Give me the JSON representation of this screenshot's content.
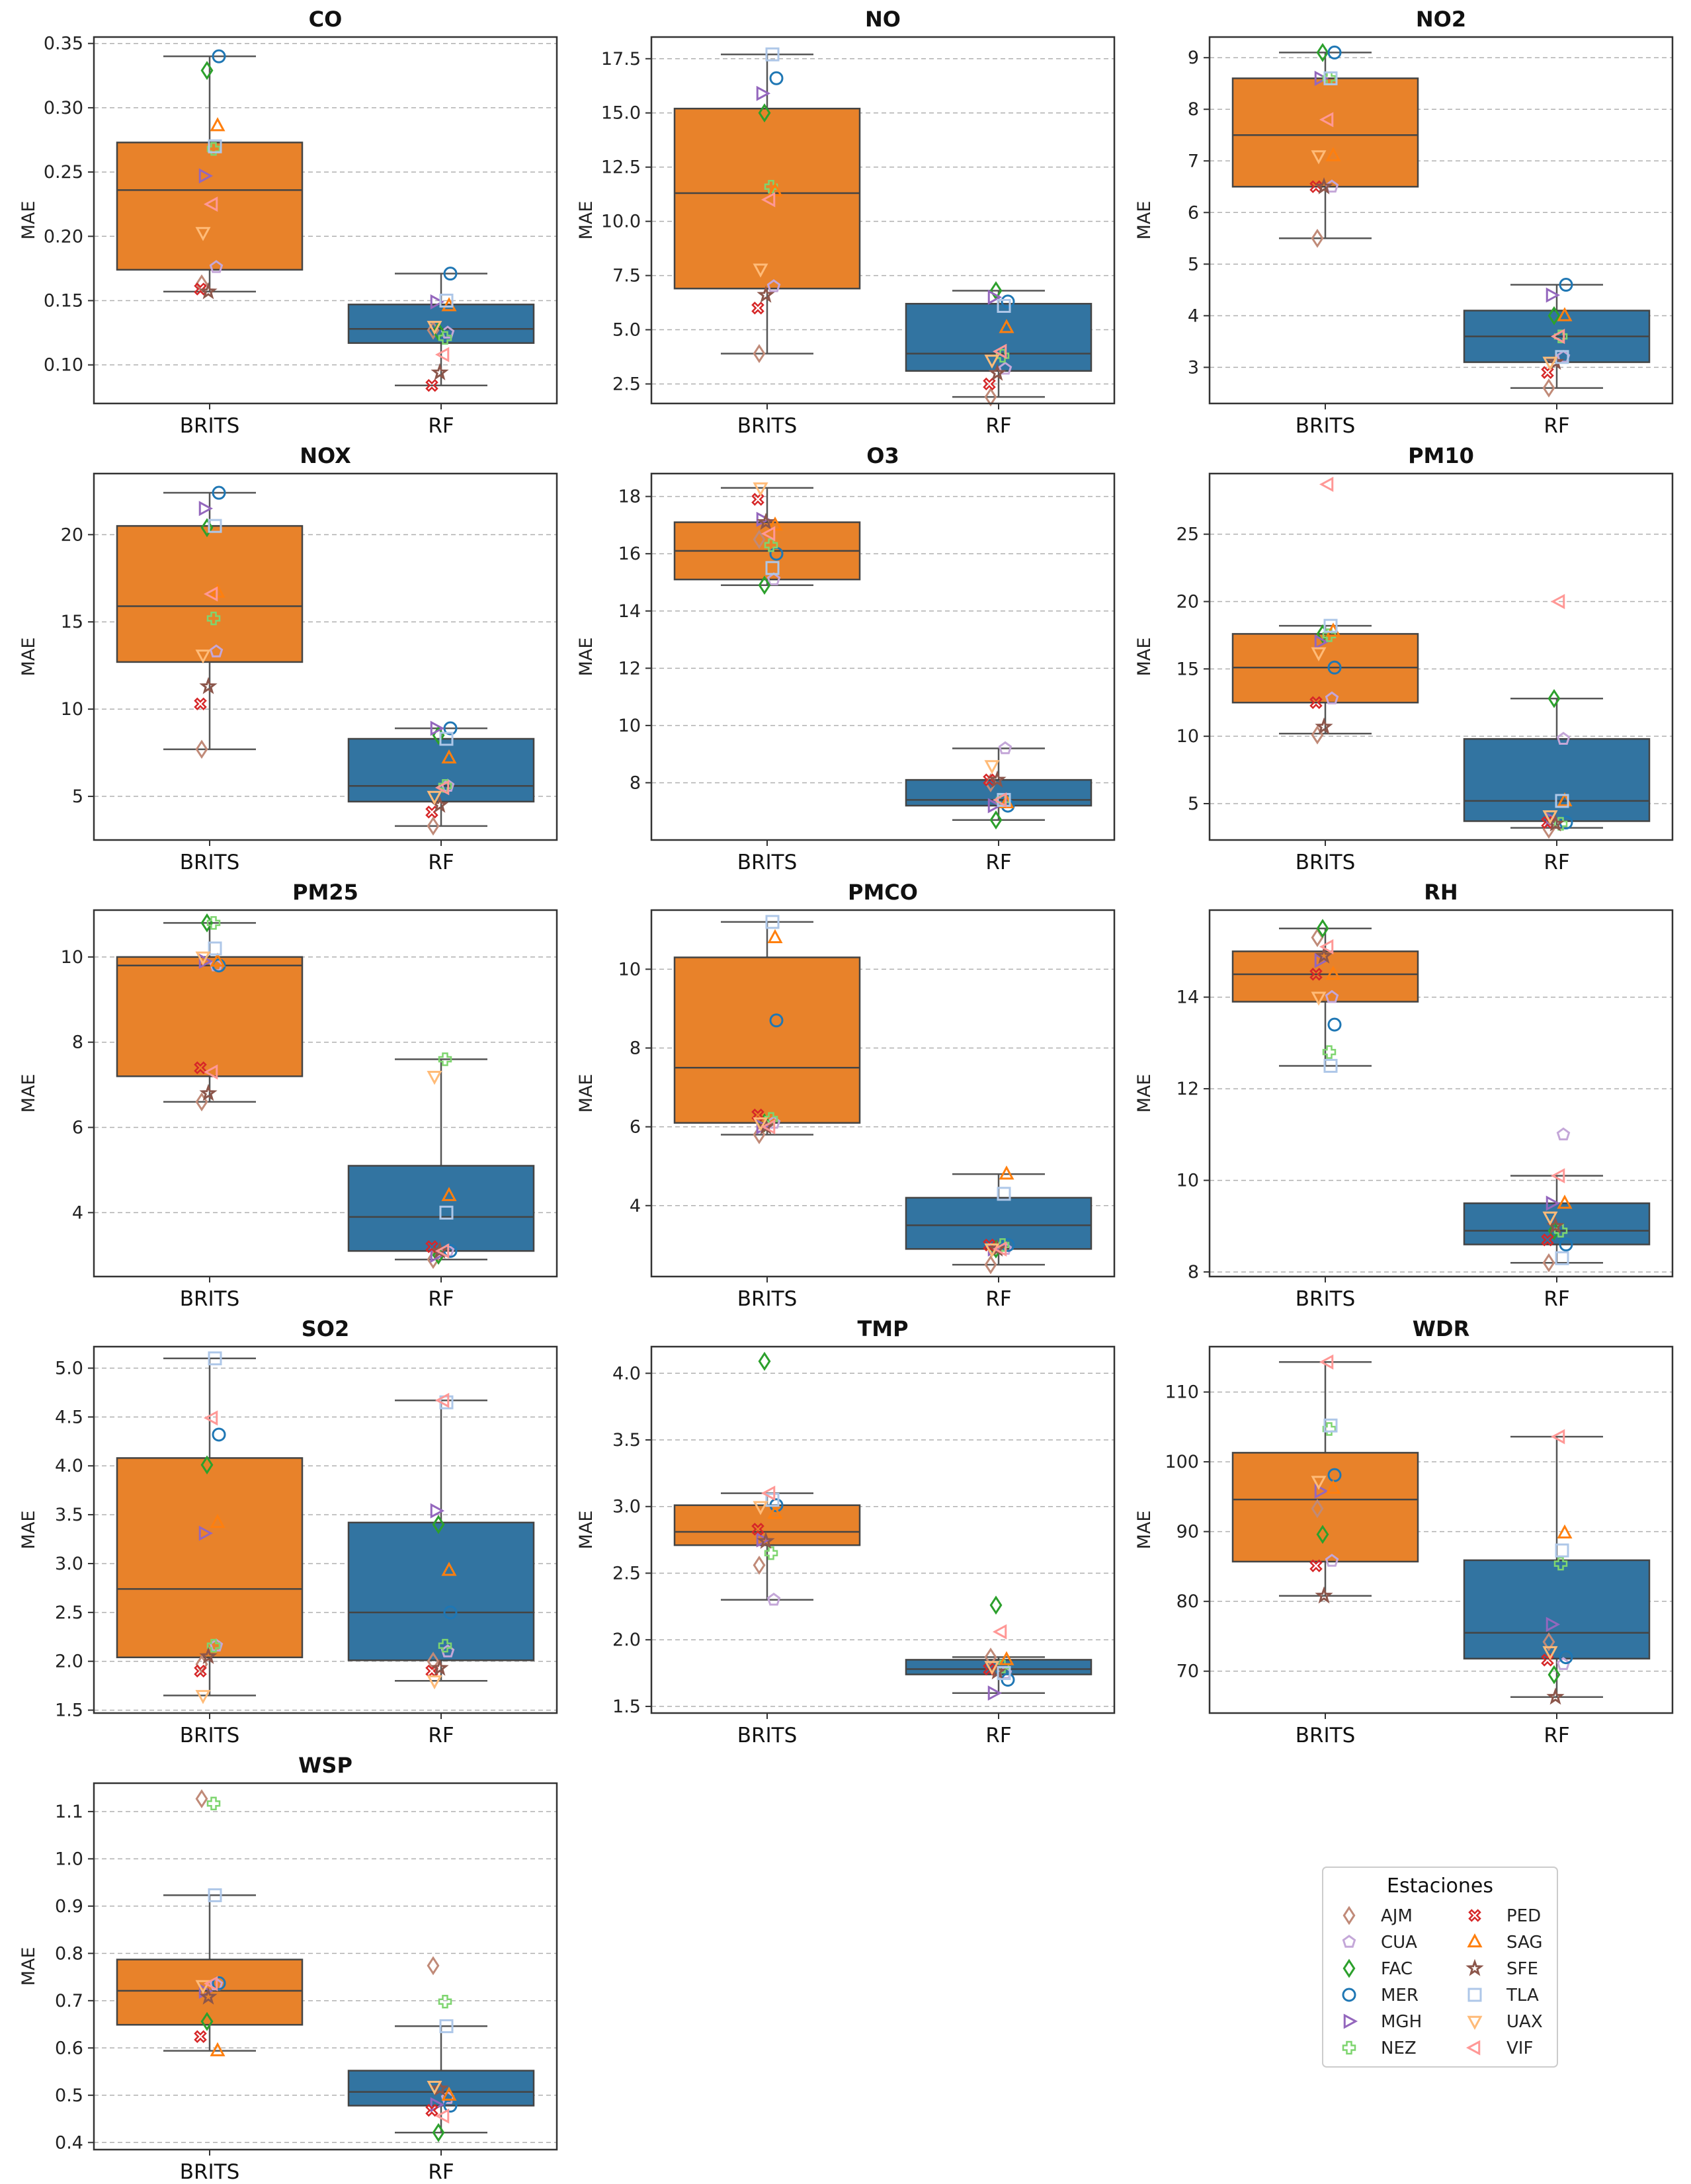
{
  "chart_data": {
    "type": "box",
    "ylabel": "MAE",
    "categories": [
      "BRITS",
      "RF"
    ],
    "legend": {
      "title": "Estaciones",
      "stations": [
        {
          "code": "AJM",
          "color": "#c08a78",
          "marker": "diamond"
        },
        {
          "code": "CUA",
          "color": "#c4a7d8",
          "marker": "pentagon"
        },
        {
          "code": "FAC",
          "color": "#2ca02c",
          "marker": "diamond"
        },
        {
          "code": "MER",
          "color": "#1f77b4",
          "marker": "circle"
        },
        {
          "code": "MGH",
          "color": "#9467bd",
          "marker": "triangle-right"
        },
        {
          "code": "NEZ",
          "color": "#7ed56f",
          "marker": "plus"
        },
        {
          "code": "PED",
          "color": "#d62728",
          "marker": "x"
        },
        {
          "code": "SAG",
          "color": "#ff7f0e",
          "marker": "triangle-up"
        },
        {
          "code": "SFE",
          "color": "#8c564b",
          "marker": "star"
        },
        {
          "code": "TLA",
          "color": "#aec7e8",
          "marker": "square"
        },
        {
          "code": "UAX",
          "color": "#ffbb78",
          "marker": "triangle-down"
        },
        {
          "code": "VIF",
          "color": "#ff9896",
          "marker": "triangle-left"
        }
      ]
    },
    "box_colors": {
      "BRITS": "#e8822a",
      "RF": "#3274a1"
    },
    "panels": [
      {
        "title": "CO",
        "ylim": [
          0.07,
          0.355
        ],
        "ticks": [
          "0.10",
          "0.15",
          "0.20",
          "0.25",
          "0.30",
          "0.35"
        ],
        "boxes": [
          {
            "q1": 0.174,
            "median": 0.236,
            "q3": 0.273,
            "lo": 0.157,
            "hi": 0.34
          },
          {
            "q1": 0.117,
            "median": 0.128,
            "q3": 0.147,
            "lo": 0.084,
            "hi": 0.171
          }
        ],
        "points": [
          {
            "AJM": 0.163,
            "CUA": 0.176,
            "FAC": 0.329,
            "MER": 0.34,
            "MGH": 0.247,
            "NEZ": 0.268,
            "PED": 0.159,
            "SAG": 0.286,
            "SFE": 0.157,
            "TLA": 0.27,
            "UAX": 0.203,
            "VIF": 0.225
          },
          {
            "AJM": 0.127,
            "CUA": 0.125,
            "FAC": 0.126,
            "MER": 0.171,
            "MGH": 0.149,
            "NEZ": 0.121,
            "PED": 0.084,
            "SAG": 0.146,
            "SFE": 0.094,
            "TLA": 0.15,
            "UAX": 0.13,
            "VIF": 0.108
          }
        ]
      },
      {
        "title": "NO",
        "ylim": [
          1.6,
          18.5
        ],
        "ticks": [
          "2.5",
          "5.0",
          "7.5",
          "10.0",
          "12.5",
          "15.0",
          "17.5"
        ],
        "boxes": [
          {
            "q1": 6.9,
            "median": 11.3,
            "q3": 15.2,
            "lo": 3.9,
            "hi": 17.7
          },
          {
            "q1": 3.1,
            "median": 3.9,
            "q3": 6.2,
            "lo": 1.9,
            "hi": 6.8
          }
        ],
        "points": [
          {
            "AJM": 3.9,
            "CUA": 7.0,
            "FAC": 15.0,
            "MER": 16.6,
            "MGH": 15.9,
            "NEZ": 11.6,
            "PED": 6.0,
            "SAG": 11.4,
            "SFE": 6.6,
            "TLA": 17.7,
            "UAX": 7.8,
            "VIF": 11.0
          },
          {
            "AJM": 1.9,
            "CUA": 3.2,
            "FAC": 6.8,
            "MER": 6.3,
            "MGH": 6.5,
            "NEZ": 3.8,
            "PED": 2.5,
            "SAG": 5.1,
            "SFE": 3.0,
            "TLA": 6.1,
            "UAX": 3.6,
            "VIF": 4.0
          }
        ]
      },
      {
        "title": "NO2",
        "ylim": [
          2.3,
          9.4
        ],
        "ticks": [
          "3",
          "4",
          "5",
          "6",
          "7",
          "8",
          "9"
        ],
        "boxes": [
          {
            "q1": 6.5,
            "median": 7.5,
            "q3": 8.6,
            "lo": 5.5,
            "hi": 9.1
          },
          {
            "q1": 3.1,
            "median": 3.6,
            "q3": 4.1,
            "lo": 2.6,
            "hi": 4.6
          }
        ],
        "points": [
          {
            "AJM": 5.5,
            "CUA": 6.5,
            "FAC": 9.1,
            "MER": 9.1,
            "MGH": 8.6,
            "NEZ": 8.6,
            "PED": 6.5,
            "SAG": 7.1,
            "SFE": 6.5,
            "TLA": 8.6,
            "UAX": 7.1,
            "VIF": 7.8
          },
          {
            "AJM": 2.6,
            "CUA": 3.2,
            "FAC": 4.0,
            "MER": 4.6,
            "MGH": 4.4,
            "NEZ": 3.6,
            "PED": 2.9,
            "SAG": 4.0,
            "SFE": 3.1,
            "TLA": 3.2,
            "UAX": 3.1,
            "VIF": 3.6
          }
        ]
      },
      {
        "title": "NOX",
        "ylim": [
          2.5,
          23.5
        ],
        "ticks": [
          "5",
          "10",
          "15",
          "20"
        ],
        "boxes": [
          {
            "q1": 12.7,
            "median": 15.9,
            "q3": 20.5,
            "lo": 7.7,
            "hi": 22.4
          },
          {
            "q1": 4.7,
            "median": 5.6,
            "q3": 8.3,
            "lo": 3.3,
            "hi": 8.9
          }
        ],
        "points": [
          {
            "AJM": 7.7,
            "CUA": 13.3,
            "FAC": 20.4,
            "MER": 22.4,
            "MGH": 21.5,
            "NEZ": 15.2,
            "PED": 10.3,
            "SAG": 16.7,
            "SFE": 11.3,
            "TLA": 20.5,
            "UAX": 13.1,
            "VIF": 16.6
          },
          {
            "AJM": 3.3,
            "CUA": 5.6,
            "FAC": 8.5,
            "MER": 8.9,
            "MGH": 8.9,
            "NEZ": 5.6,
            "PED": 4.1,
            "SAG": 7.2,
            "SFE": 4.5,
            "TLA": 8.3,
            "UAX": 5.0,
            "VIF": 5.5
          }
        ]
      },
      {
        "title": "O3",
        "ylim": [
          6.0,
          18.8
        ],
        "ticks": [
          "8",
          "10",
          "12",
          "14",
          "16",
          "18"
        ],
        "boxes": [
          {
            "q1": 15.1,
            "median": 16.1,
            "q3": 17.1,
            "lo": 14.9,
            "hi": 18.3
          },
          {
            "q1": 7.2,
            "median": 7.4,
            "q3": 8.1,
            "lo": 6.7,
            "hi": 9.2
          }
        ],
        "points": [
          {
            "AJM": 16.5,
            "CUA": 15.1,
            "FAC": 14.9,
            "MER": 16.0,
            "MGH": 17.2,
            "NEZ": 16.3,
            "PED": 17.9,
            "SAG": 17.0,
            "SFE": 17.1,
            "TLA": 15.5,
            "UAX": 18.3,
            "VIF": 16.7
          },
          {
            "AJM": 8.0,
            "CUA": 9.2,
            "FAC": 6.7,
            "MER": 7.2,
            "MGH": 7.2,
            "NEZ": 7.4,
            "PED": 8.1,
            "SAG": 7.3,
            "SFE": 8.1,
            "TLA": 7.4,
            "UAX": 8.6,
            "VIF": 7.4
          }
        ]
      },
      {
        "title": "PM10",
        "ylim": [
          2.3,
          29.5
        ],
        "ticks": [
          "5",
          "10",
          "15",
          "20",
          "25"
        ],
        "boxes": [
          {
            "q1": 12.5,
            "median": 15.1,
            "q3": 17.6,
            "lo": 10.2,
            "hi": 18.2
          },
          {
            "q1": 3.7,
            "median": 5.2,
            "q3": 9.8,
            "lo": 3.2,
            "hi": 12.8
          }
        ],
        "points": [
          {
            "AJM": 10.1,
            "CUA": 12.8,
            "FAC": 17.6,
            "MER": 15.1,
            "MGH": 17.0,
            "NEZ": 17.5,
            "PED": 12.5,
            "SAG": 17.8,
            "SFE": 10.7,
            "TLA": 18.2,
            "UAX": 16.2,
            "VIF": 28.7
          },
          {
            "AJM": 3.1,
            "CUA": 9.8,
            "FAC": 12.8,
            "MER": 3.6,
            "MGH": 3.8,
            "NEZ": 3.5,
            "PED": 3.6,
            "SAG": 5.2,
            "SFE": 3.5,
            "TLA": 5.2,
            "UAX": 4.1,
            "VIF": 20.0
          }
        ]
      },
      {
        "title": "PM25",
        "ylim": [
          2.5,
          11.1
        ],
        "ticks": [
          "4",
          "6",
          "8",
          "10"
        ],
        "boxes": [
          {
            "q1": 7.2,
            "median": 9.8,
            "q3": 10.0,
            "lo": 6.6,
            "hi": 10.8
          },
          {
            "q1": 3.1,
            "median": 3.9,
            "q3": 5.1,
            "lo": 2.9,
            "hi": 7.6
          }
        ],
        "points": [
          {
            "AJM": 6.6,
            "CUA": 9.8,
            "FAC": 10.8,
            "MER": 9.8,
            "MGH": 9.9,
            "NEZ": 10.8,
            "PED": 7.4,
            "SAG": 9.9,
            "SFE": 6.8,
            "TLA": 10.2,
            "UAX": 10.0,
            "VIF": 7.3
          },
          {
            "AJM": 2.9,
            "CUA": 3.1,
            "FAC": 3.0,
            "MER": 3.1,
            "MGH": 3.0,
            "NEZ": 7.6,
            "PED": 3.2,
            "SAG": 4.4,
            "SFE": 3.1,
            "TLA": 4.0,
            "UAX": 7.2,
            "VIF": 3.1
          }
        ]
      },
      {
        "title": "PMCO",
        "ylim": [
          2.2,
          11.5
        ],
        "ticks": [
          "4",
          "6",
          "8",
          "10"
        ],
        "boxes": [
          {
            "q1": 6.1,
            "median": 7.5,
            "q3": 10.3,
            "lo": 5.8,
            "hi": 11.2
          },
          {
            "q1": 2.9,
            "median": 3.5,
            "q3": 4.2,
            "lo": 2.5,
            "hi": 4.8
          }
        ],
        "points": [
          {
            "AJM": 5.8,
            "CUA": 6.1,
            "FAC": 6.1,
            "MER": 8.7,
            "MGH": 6.0,
            "NEZ": 6.2,
            "PED": 6.3,
            "SAG": 10.8,
            "SFE": 6.0,
            "TLA": 11.2,
            "UAX": 6.1,
            "VIF": 6.0
          },
          {
            "AJM": 2.5,
            "CUA": 2.9,
            "FAC": 2.9,
            "MER": 3.0,
            "MGH": 2.9,
            "NEZ": 3.0,
            "PED": 3.0,
            "SAG": 4.8,
            "SFE": 2.9,
            "TLA": 4.3,
            "UAX": 2.9,
            "VIF": 2.9
          }
        ]
      },
      {
        "title": "RH",
        "ylim": [
          7.9,
          15.9
        ],
        "ticks": [
          "8",
          "10",
          "12",
          "14"
        ],
        "boxes": [
          {
            "q1": 13.9,
            "median": 14.5,
            "q3": 15.0,
            "lo": 12.5,
            "hi": 15.5
          },
          {
            "q1": 8.6,
            "median": 8.9,
            "q3": 9.5,
            "lo": 8.2,
            "hi": 10.1
          }
        ],
        "points": [
          {
            "AJM": 15.3,
            "CUA": 14.0,
            "FAC": 15.5,
            "MER": 13.4,
            "MGH": 14.8,
            "NEZ": 12.8,
            "PED": 14.5,
            "SAG": 14.5,
            "SFE": 14.9,
            "TLA": 12.5,
            "UAX": 14.0,
            "VIF": 15.1
          },
          {
            "AJM": 8.2,
            "CUA": 11.0,
            "FAC": 8.9,
            "MER": 8.6,
            "MGH": 9.5,
            "NEZ": 8.9,
            "PED": 8.7,
            "SAG": 9.5,
            "SFE": 9.0,
            "TLA": 8.3,
            "UAX": 9.2,
            "VIF": 10.1
          }
        ]
      },
      {
        "title": "SO2",
        "ylim": [
          1.47,
          5.22
        ],
        "ticks": [
          "1.5",
          "2.0",
          "2.5",
          "3.0",
          "3.5",
          "4.0",
          "4.5",
          "5.0"
        ],
        "boxes": [
          {
            "q1": 2.04,
            "median": 2.74,
            "q3": 4.08,
            "lo": 1.65,
            "hi": 5.1
          },
          {
            "q1": 2.01,
            "median": 2.5,
            "q3": 3.42,
            "lo": 1.8,
            "hi": 4.67
          }
        ],
        "points": [
          {
            "AJM": 1.97,
            "CUA": 2.16,
            "FAC": 4.01,
            "MER": 4.32,
            "MGH": 3.31,
            "NEZ": 2.16,
            "PED": 1.9,
            "SAG": 3.42,
            "SFE": 2.05,
            "TLA": 5.1,
            "UAX": 1.65,
            "VIF": 4.49
          },
          {
            "AJM": 2.0,
            "CUA": 2.1,
            "FAC": 3.4,
            "MER": 2.5,
            "MGH": 3.54,
            "NEZ": 2.16,
            "PED": 1.9,
            "SAG": 2.93,
            "SFE": 1.93,
            "TLA": 4.65,
            "UAX": 1.8,
            "VIF": 4.67
          }
        ]
      },
      {
        "title": "TMP",
        "ylim": [
          1.45,
          4.2
        ],
        "ticks": [
          "1.5",
          "2.0",
          "2.5",
          "3.0",
          "3.5",
          "4.0"
        ],
        "boxes": [
          {
            "q1": 2.71,
            "median": 2.81,
            "q3": 3.01,
            "lo": 2.3,
            "hi": 3.1
          },
          {
            "q1": 1.74,
            "median": 1.78,
            "q3": 1.85,
            "lo": 1.6,
            "hi": 1.87
          }
        ],
        "points": [
          {
            "AJM": 2.56,
            "CUA": 2.3,
            "FAC": 4.09,
            "MER": 3.01,
            "MGH": 2.75,
            "NEZ": 2.65,
            "PED": 2.83,
            "SAG": 2.95,
            "SFE": 2.74,
            "TLA": 3.05,
            "UAX": 3.0,
            "VIF": 3.1
          },
          {
            "AJM": 1.87,
            "CUA": 1.75,
            "FAC": 2.26,
            "MER": 1.7,
            "MGH": 1.6,
            "NEZ": 1.8,
            "PED": 1.78,
            "SAG": 1.85,
            "SFE": 1.76,
            "TLA": 1.75,
            "UAX": 1.8,
            "VIF": 2.06
          }
        ]
      },
      {
        "title": "WDR",
        "ylim": [
          64,
          116.5
        ],
        "ticks": [
          "70",
          "80",
          "90",
          "100",
          "110"
        ],
        "boxes": [
          {
            "q1": 85.7,
            "median": 94.6,
            "q3": 101.3,
            "lo": 80.8,
            "hi": 114.3
          },
          {
            "q1": 71.8,
            "median": 75.5,
            "q3": 85.9,
            "lo": 66.3,
            "hi": 103.6
          }
        ],
        "points": [
          {
            "AJM": 93.3,
            "CUA": 85.8,
            "FAC": 89.6,
            "MER": 98.1,
            "MGH": 95.8,
            "NEZ": 104.7,
            "PED": 85.1,
            "SAG": 96.2,
            "SFE": 80.8,
            "TLA": 105.2,
            "UAX": 97.2,
            "VIF": 114.3
          },
          {
            "AJM": 74.2,
            "CUA": 71.0,
            "FAC": 69.5,
            "MER": 72.0,
            "MGH": 76.7,
            "NEZ": 85.4,
            "PED": 71.6,
            "SAG": 89.8,
            "SFE": 66.3,
            "TLA": 87.3,
            "UAX": 72.8,
            "VIF": 103.6
          }
        ]
      },
      {
        "title": "WSP",
        "ylim": [
          0.385,
          1.16
        ],
        "ticks": [
          "0.4",
          "0.5",
          "0.6",
          "0.7",
          "0.8",
          "0.9",
          "1.0",
          "1.1"
        ],
        "boxes": [
          {
            "q1": 0.649,
            "median": 0.721,
            "q3": 0.787,
            "lo": 0.594,
            "hi": 0.923
          },
          {
            "q1": 0.478,
            "median": 0.507,
            "q3": 0.552,
            "lo": 0.421,
            "hi": 0.646
          }
        ],
        "points": [
          {
            "AJM": 1.127,
            "CUA": 0.734,
            "FAC": 0.656,
            "MER": 0.737,
            "MGH": 0.72,
            "NEZ": 1.117,
            "PED": 0.624,
            "SAG": 0.594,
            "SFE": 0.708,
            "TLA": 0.923,
            "UAX": 0.732,
            "VIF": 0.736
          },
          {
            "AJM": 0.774,
            "CUA": 0.494,
            "FAC": 0.421,
            "MER": 0.478,
            "MGH": 0.48,
            "NEZ": 0.698,
            "PED": 0.468,
            "SAG": 0.5,
            "SFE": 0.514,
            "TLA": 0.646,
            "UAX": 0.519,
            "VIF": 0.456
          }
        ]
      }
    ]
  }
}
